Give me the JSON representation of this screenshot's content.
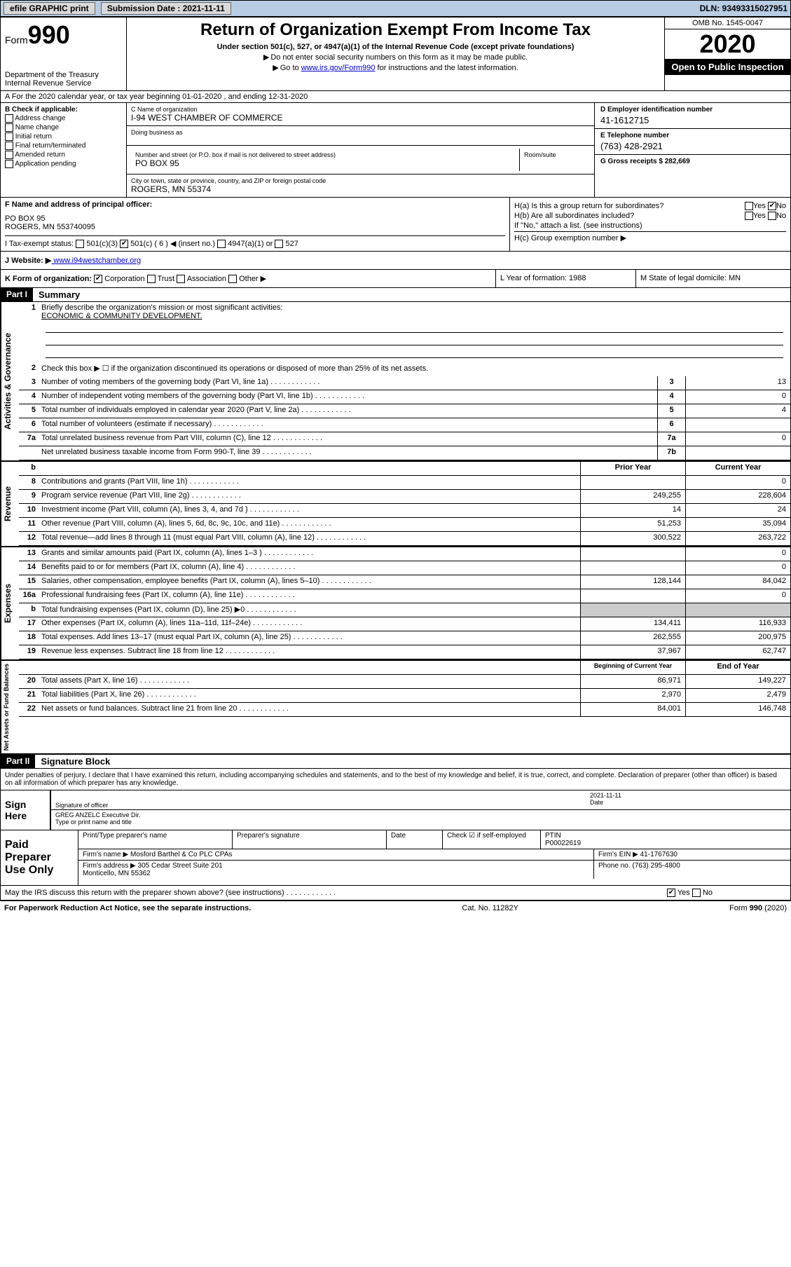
{
  "topbar": {
    "efile_label": "efile GRAPHIC print",
    "submission_label": "Submission Date : 2021-11-11",
    "dln_label": "DLN: 93493315027951"
  },
  "header": {
    "form_word": "Form",
    "form_num": "990",
    "dept": "Department of the Treasury",
    "irs": "Internal Revenue Service",
    "title": "Return of Organization Exempt From Income Tax",
    "subtitle": "Under section 501(c), 527, or 4947(a)(1) of the Internal Revenue Code (except private foundations)",
    "line1": "Do not enter social security numbers on this form as it may be made public.",
    "line2_pre": "Go to ",
    "line2_link": "www.irs.gov/Form990",
    "line2_post": " for instructions and the latest information.",
    "omb": "OMB No. 1545-0047",
    "year": "2020",
    "open_pub": "Open to Public Inspection"
  },
  "row_a": "A  For the 2020 calendar year, or tax year beginning 01-01-2020    , and ending 12-31-2020",
  "col_b": {
    "hdr": "B Check if applicable:",
    "opts": [
      "Address change",
      "Name change",
      "Initial return",
      "Final return/terminated",
      "Amended return",
      "Application pending"
    ]
  },
  "col_c": {
    "name_lbl": "C Name of organization",
    "name_val": "I-94 WEST CHAMBER OF COMMERCE",
    "dba_lbl": "Doing business as",
    "dba_val": "",
    "addr_lbl": "Number and street (or P.O. box if mail is not delivered to street address)",
    "addr_val": "PO BOX 95",
    "room_lbl": "Room/suite",
    "city_lbl": "City or town, state or province, country, and ZIP or foreign postal code",
    "city_val": "ROGERS, MN  55374"
  },
  "col_d": {
    "ein_lbl": "D Employer identification number",
    "ein_val": "41-1612715",
    "tel_lbl": "E Telephone number",
    "tel_val": "(763) 428-2921",
    "gross_lbl": "G Gross receipts $ 282,669"
  },
  "row_f": {
    "lbl": "F Name and address of principal officer:",
    "val": "PO BOX 95\nROGERS, MN  553740095"
  },
  "row_h": {
    "ha_lbl": "H(a)  Is this a group return for subordinates?",
    "ha_no": "No",
    "hb_lbl": "H(b)  Are all subordinates included?",
    "hb_note": "If \"No,\" attach a list. (see instructions)",
    "hc_lbl": "H(c)  Group exemption number ▶"
  },
  "row_i": {
    "lbl": "I   Tax-exempt status:",
    "o1": "501(c)(3)",
    "o2": "501(c) ( 6 ) ◀ (insert no.)",
    "o3": "4947(a)(1) or",
    "o4": "527"
  },
  "row_j": {
    "lbl": "J   Website: ▶",
    "val": " www.i94westchamber.org"
  },
  "row_k": {
    "k1_lbl": "K Form of organization:",
    "k1_opts": [
      "Corporation",
      "Trust",
      "Association",
      "Other ▶"
    ],
    "k2": "L Year of formation: 1988",
    "k3": "M State of legal domicile: MN"
  },
  "part1": {
    "hdr": "Part I",
    "title": "Summary"
  },
  "summary": {
    "q1_lbl": "Briefly describe the organization's mission or most significant activities:",
    "q1_val": "ECONOMIC & COMMUNITY DEVELOPMENT.",
    "q2": "Check this box ▶ ☐  if the organization discontinued its operations or disposed of more than 25% of its net assets.",
    "lines_top": [
      {
        "n": "3",
        "d": "Number of voting members of the governing body (Part VI, line 1a)",
        "b": "3",
        "v": "13"
      },
      {
        "n": "4",
        "d": "Number of independent voting members of the governing body (Part VI, line 1b)",
        "b": "4",
        "v": "0"
      },
      {
        "n": "5",
        "d": "Total number of individuals employed in calendar year 2020 (Part V, line 2a)",
        "b": "5",
        "v": "4"
      },
      {
        "n": "6",
        "d": "Total number of volunteers (estimate if necessary)",
        "b": "6",
        "v": ""
      },
      {
        "n": "7a",
        "d": "Total unrelated business revenue from Part VIII, column (C), line 12",
        "b": "7a",
        "v": "0"
      },
      {
        "n": "",
        "d": "Net unrelated business taxable income from Form 990-T, line 39",
        "b": "7b",
        "v": ""
      }
    ],
    "col_hdr_prior": "Prior Year",
    "col_hdr_current": "Current Year",
    "revenue": [
      {
        "n": "8",
        "d": "Contributions and grants (Part VIII, line 1h)",
        "p": "",
        "c": "0"
      },
      {
        "n": "9",
        "d": "Program service revenue (Part VIII, line 2g)",
        "p": "249,255",
        "c": "228,604"
      },
      {
        "n": "10",
        "d": "Investment income (Part VIII, column (A), lines 3, 4, and 7d )",
        "p": "14",
        "c": "24"
      },
      {
        "n": "11",
        "d": "Other revenue (Part VIII, column (A), lines 5, 6d, 8c, 9c, 10c, and 11e)",
        "p": "51,253",
        "c": "35,094"
      },
      {
        "n": "12",
        "d": "Total revenue—add lines 8 through 11 (must equal Part VIII, column (A), line 12)",
        "p": "300,522",
        "c": "263,722"
      }
    ],
    "expenses": [
      {
        "n": "13",
        "d": "Grants and similar amounts paid (Part IX, column (A), lines 1–3 )",
        "p": "",
        "c": "0"
      },
      {
        "n": "14",
        "d": "Benefits paid to or for members (Part IX, column (A), line 4)",
        "p": "",
        "c": "0"
      },
      {
        "n": "15",
        "d": "Salaries, other compensation, employee benefits (Part IX, column (A), lines 5–10)",
        "p": "128,144",
        "c": "84,042"
      },
      {
        "n": "16a",
        "d": "Professional fundraising fees (Part IX, column (A), line 11e)",
        "p": "",
        "c": "0"
      },
      {
        "n": "b",
        "d": "Total fundraising expenses (Part IX, column (D), line 25) ▶0",
        "p": null,
        "c": null
      },
      {
        "n": "17",
        "d": "Other expenses (Part IX, column (A), lines 11a–11d, 11f–24e)",
        "p": "134,411",
        "c": "116,933"
      },
      {
        "n": "18",
        "d": "Total expenses. Add lines 13–17 (must equal Part IX, column (A), line 25)",
        "p": "262,555",
        "c": "200,975"
      },
      {
        "n": "19",
        "d": "Revenue less expenses. Subtract line 18 from line 12",
        "p": "37,967",
        "c": "62,747"
      }
    ],
    "col_hdr_beg": "Beginning of Current Year",
    "col_hdr_end": "End of Year",
    "netassets": [
      {
        "n": "20",
        "d": "Total assets (Part X, line 16)",
        "p": "86,971",
        "c": "149,227"
      },
      {
        "n": "21",
        "d": "Total liabilities (Part X, line 26)",
        "p": "2,970",
        "c": "2,479"
      },
      {
        "n": "22",
        "d": "Net assets or fund balances. Subtract line 21 from line 20",
        "p": "84,001",
        "c": "146,748"
      }
    ],
    "vlabels": {
      "gov": "Activities & Governance",
      "rev": "Revenue",
      "exp": "Expenses",
      "net": "Net Assets or Fund Balances"
    }
  },
  "part2": {
    "hdr": "Part II",
    "title": "Signature Block",
    "disclaim": "Under penalties of perjury, I declare that I have examined this return, including accompanying schedules and statements, and to the best of my knowledge and belief, it is true, correct, and complete. Declaration of preparer (other than officer) is based on all information of which preparer has any knowledge."
  },
  "sign": {
    "label": "Sign Here",
    "sig_lbl": "Signature of officer",
    "date_lbl": "Date",
    "date_val": "2021-11-11",
    "name_val": "GREG ANZELC  Executive Dir.",
    "name_lbl": "Type or print name and title"
  },
  "prep": {
    "label": "Paid Preparer Use Only",
    "print_lbl": "Print/Type preparer's name",
    "sig_lbl": "Preparer's signature",
    "date_lbl": "Date",
    "self_lbl": "Check ☑ if self-employed",
    "ptin_lbl": "PTIN",
    "ptin_val": "P00022619",
    "firm_name_lbl": "Firm's name    ▶",
    "firm_name_val": "Mosford Barthel & Co PLC CPAs",
    "firm_ein_lbl": "Firm's EIN ▶",
    "firm_ein_val": "41-1767630",
    "firm_addr_lbl": "Firm's address ▶",
    "firm_addr_val": "305 Cedar Street Suite 201\nMonticello, MN  55362",
    "phone_lbl": "Phone no.",
    "phone_val": "(763) 295-4800"
  },
  "discuss": {
    "q": "May the IRS discuss this return with the preparer shown above? (see instructions)",
    "yes": "Yes",
    "no": "No"
  },
  "footer": {
    "left": "For Paperwork Reduction Act Notice, see the separate instructions.",
    "mid": "Cat. No. 11282Y",
    "right": "Form 990 (2020)"
  }
}
